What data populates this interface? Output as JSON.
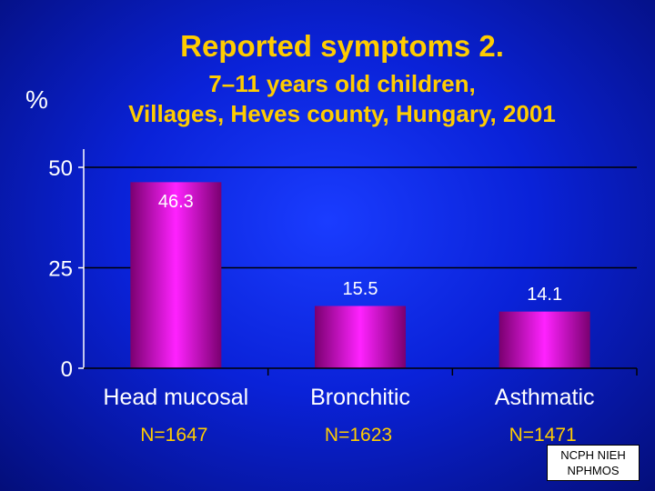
{
  "title": "Reported symptoms 2.",
  "subtitle_line1": "7–11 years old children,",
  "subtitle_line2": "Villages, Heves county, Hungary, 2001",
  "ylabel": "%",
  "source_box": {
    "line1": "NCPH NIEH",
    "line2": "NPHMOS"
  },
  "colors": {
    "background": "#0a22d8",
    "bar_center": "#ff22ff",
    "bar_edge": "#7a0070",
    "title": "#ffcc00",
    "text": "#ffffff"
  },
  "chart_data": {
    "type": "bar",
    "categories": [
      "Head mucosal",
      "Bronchitic",
      "Asthmatic"
    ],
    "counts": [
      "N=1647",
      "N=1623",
      "N=1471"
    ],
    "values": [
      46.3,
      15.5,
      14.1
    ],
    "value_labels": [
      "46.3",
      "15.5",
      "14.1"
    ],
    "ylim": [
      0,
      50
    ],
    "yticks": [
      0,
      25,
      50
    ],
    "grid": true
  }
}
